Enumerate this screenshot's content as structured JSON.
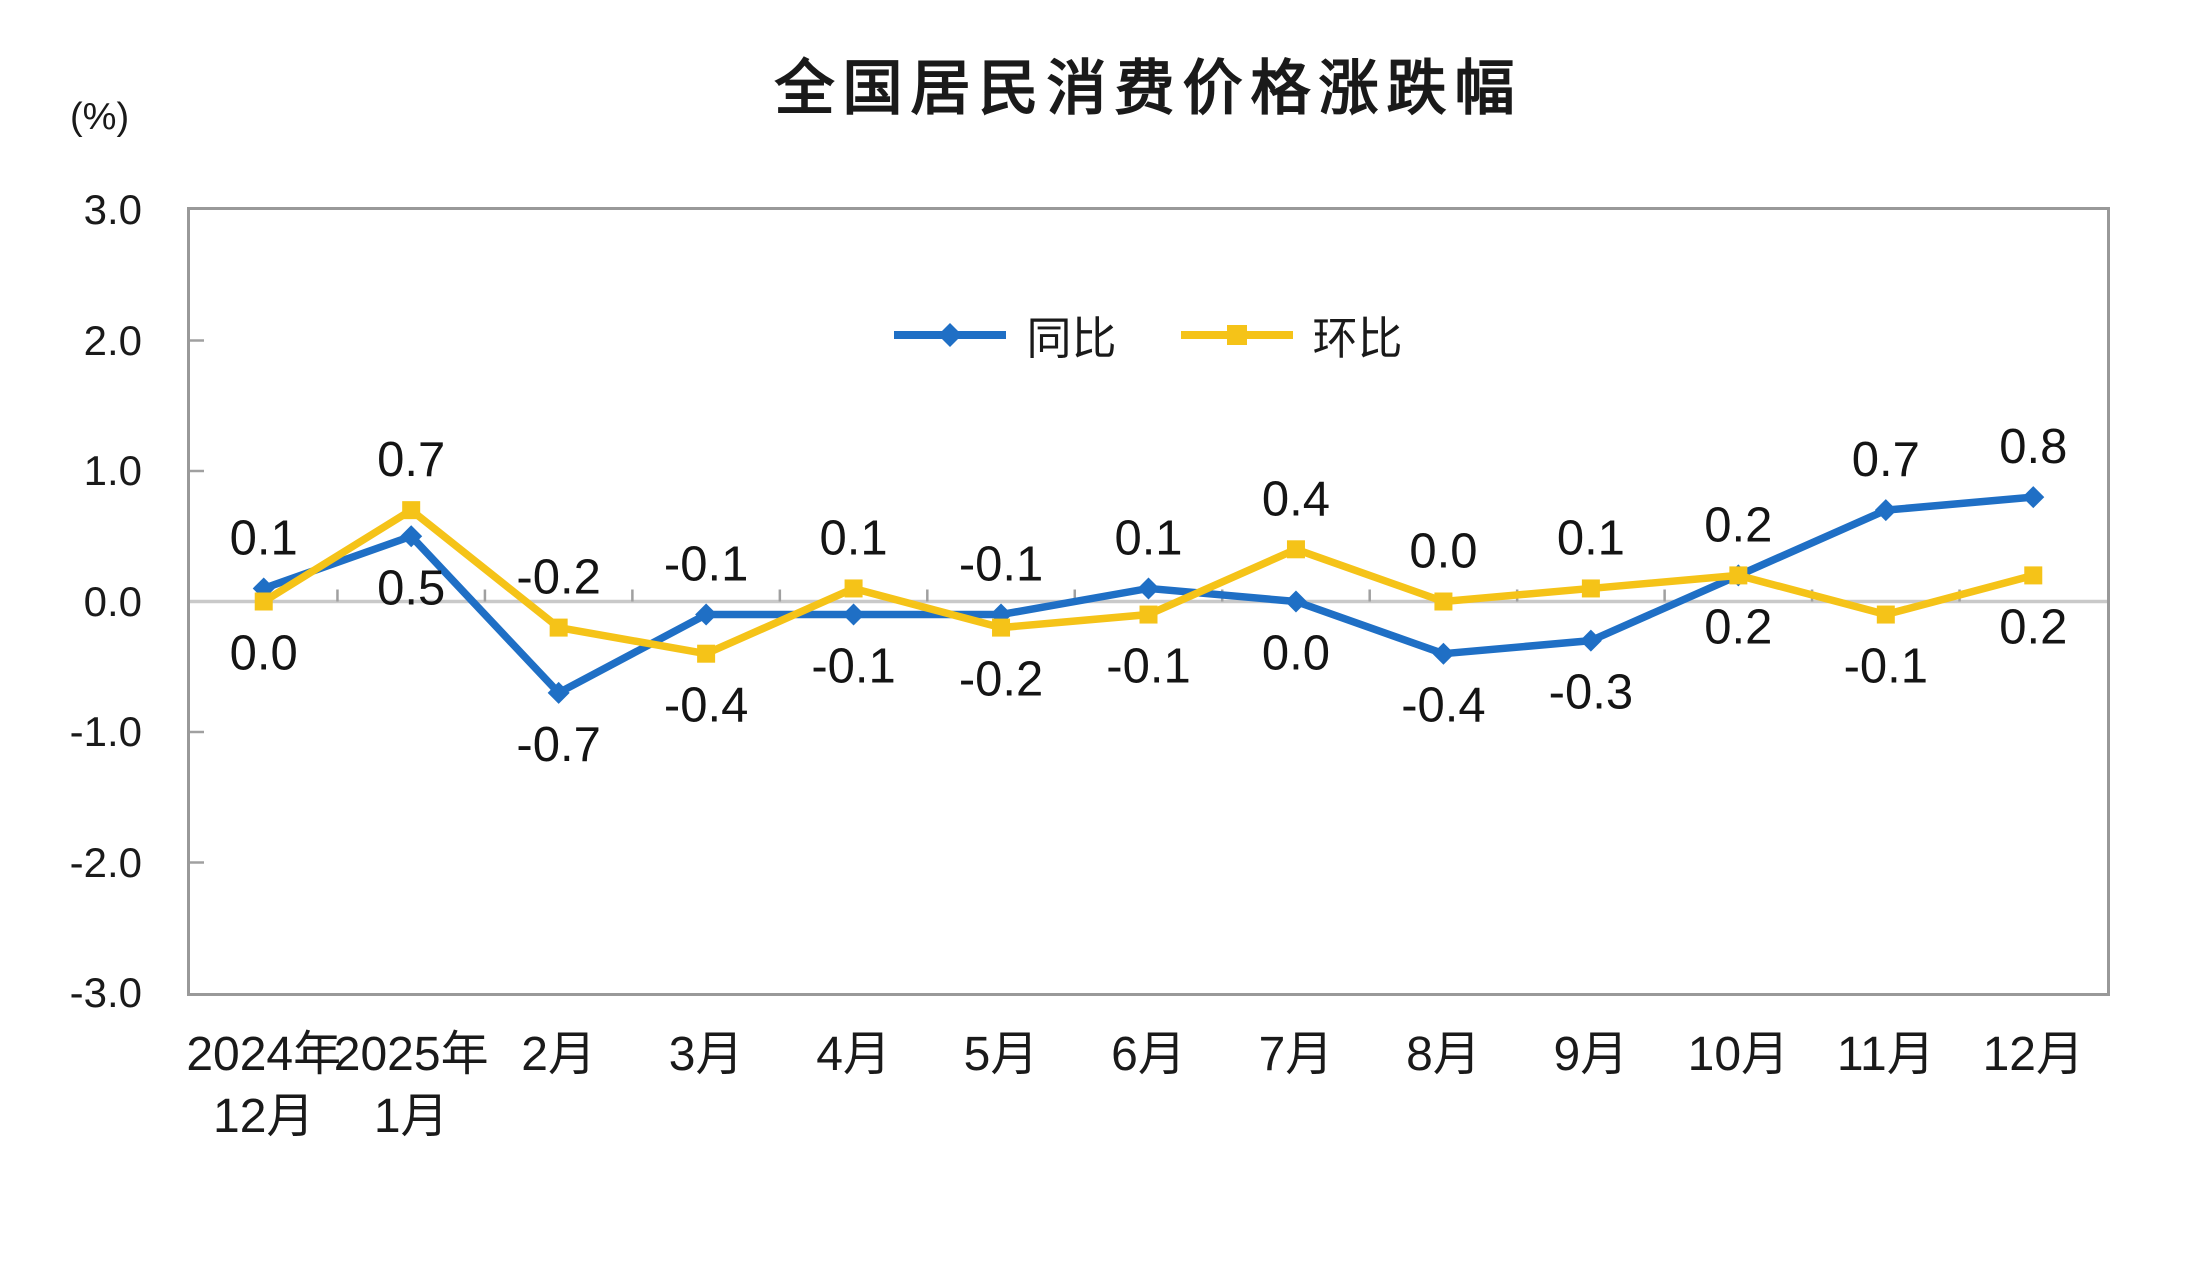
{
  "title": "全国居民消费价格涨跌幅",
  "y_axis": {
    "unit_label": "(%)",
    "ticks": [
      "3.0",
      "2.0",
      "1.0",
      "0.0",
      "-1.0",
      "-2.0",
      "-3.0"
    ]
  },
  "colors": {
    "yoy_blue": "#1F6FC5",
    "mom_yellow": "#F5C318",
    "zero_line": "#C9C9C9",
    "axis_frame": "#999999",
    "axis_tick": "#A0A0A0",
    "label_text": "#141414"
  },
  "chart_data": {
    "type": "line",
    "title": "全国居民消费价格涨跌幅",
    "ylabel": "(%)",
    "ylim": [
      -3.0,
      3.0
    ],
    "y_tick_step": 1.0,
    "grid": "zero-line-only",
    "legend_position": "inside-top-center",
    "categories": [
      [
        "2024年",
        "12月"
      ],
      [
        "2025年",
        "1月"
      ],
      [
        "2月"
      ],
      [
        "3月"
      ],
      [
        "4月"
      ],
      [
        "5月"
      ],
      [
        "6月"
      ],
      [
        "7月"
      ],
      [
        "8月"
      ],
      [
        "9月"
      ],
      [
        "10月"
      ],
      [
        "11月"
      ],
      [
        "12月"
      ]
    ],
    "series": [
      {
        "id": "yoy",
        "name": "同比",
        "color": "#1F6FC5",
        "marker": "diamond",
        "values": [
          0.1,
          0.5,
          -0.7,
          -0.1,
          -0.1,
          -0.1,
          0.1,
          0.0,
          -0.4,
          -0.3,
          0.2,
          0.7,
          0.8
        ],
        "label_pos": [
          "above",
          "below",
          "below",
          "above",
          "below",
          "above",
          "above",
          "below",
          "below",
          "below",
          "below",
          "above",
          "above"
        ]
      },
      {
        "id": "mom",
        "name": "环比",
        "color": "#F5C318",
        "marker": "square",
        "values": [
          0.0,
          0.7,
          -0.2,
          -0.4,
          0.1,
          -0.2,
          -0.1,
          0.4,
          0.0,
          0.1,
          0.2,
          -0.1,
          0.2
        ],
        "label_pos": [
          "below",
          "above",
          "above",
          "below",
          "above",
          "below",
          "below",
          "above",
          "above",
          "above",
          "above",
          "below",
          "below"
        ]
      }
    ]
  }
}
